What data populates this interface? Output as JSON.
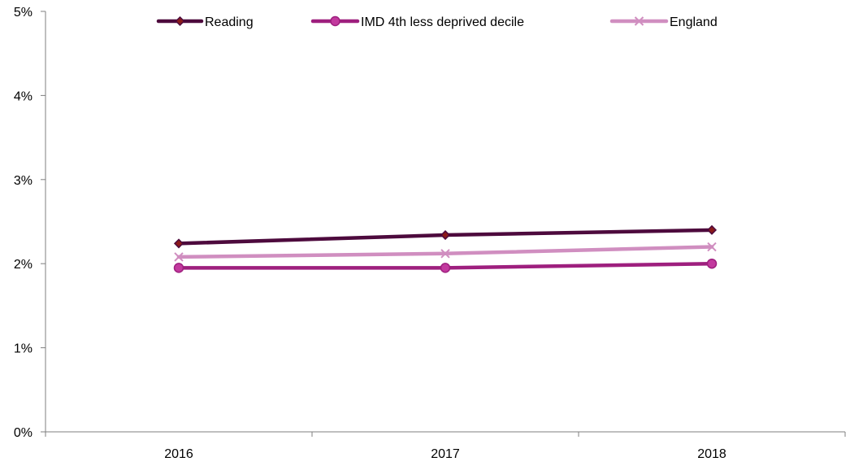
{
  "chart_data": {
    "type": "line",
    "title": "",
    "xlabel": "",
    "ylabel": "",
    "categories": [
      "2016",
      "2017",
      "2018"
    ],
    "y_ticks": [
      "0%",
      "1%",
      "2%",
      "3%",
      "4%",
      "5%"
    ],
    "ylim": [
      0,
      5
    ],
    "y_unit": "%",
    "grid": false,
    "legend_position": "top",
    "series": [
      {
        "name": "Reading",
        "values": [
          2.24,
          2.34,
          2.4
        ],
        "color": "#4d0a3d",
        "marker": "diamond",
        "marker_fill": "#8b1a1a"
      },
      {
        "name": "IMD 4th less deprived decile",
        "values": [
          1.95,
          1.95,
          2.0
        ],
        "color": "#9e1f7e",
        "marker": "circle",
        "marker_fill": "#c2399e"
      },
      {
        "name": "England",
        "values": [
          2.08,
          2.12,
          2.2
        ],
        "color": "#d08ec0",
        "marker": "x",
        "marker_fill": "#d08ec0"
      }
    ]
  }
}
